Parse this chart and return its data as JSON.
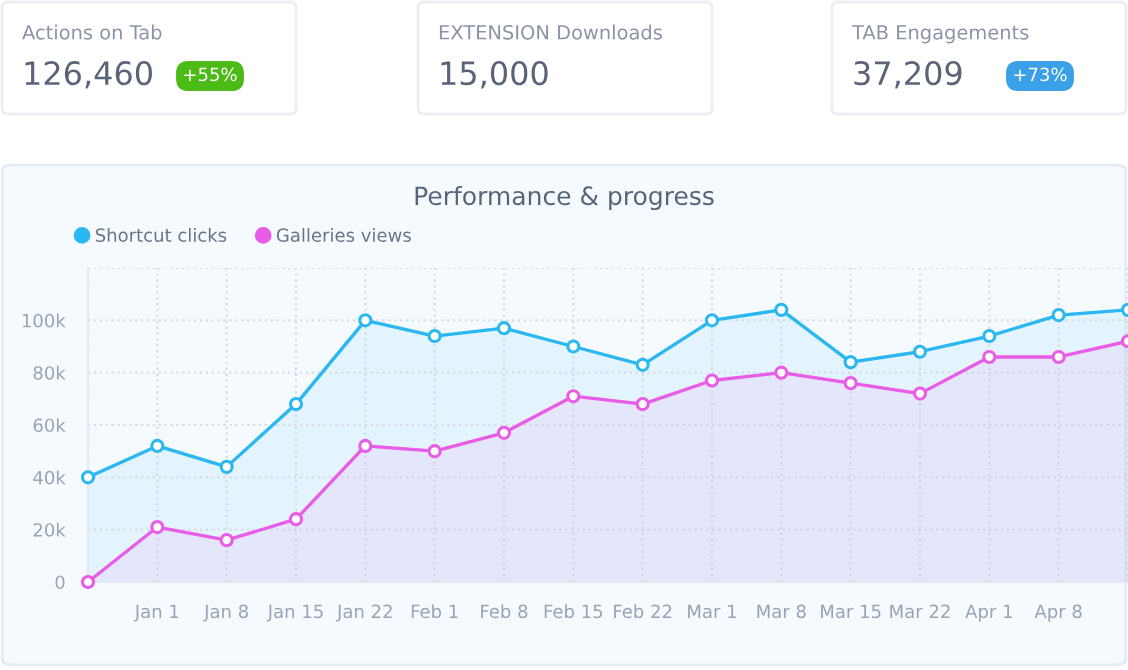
{
  "chart_data": [
    {
      "type": "other",
      "title": "Actions on Tab",
      "annotations": [
        "126,460",
        "+55%"
      ]
    },
    {
      "type": "other",
      "title": "EXTENSION Downloads",
      "annotations": [
        "15,000"
      ]
    },
    {
      "type": "other",
      "title": "TAB Engagements",
      "annotations": [
        "37,209",
        "+73%"
      ]
    },
    {
      "type": "area",
      "title": "Performance & progress",
      "categories": [
        null,
        "Jan 1",
        "Jan 8",
        "Jan 15",
        "Jan 22",
        "Feb 1",
        "Feb 8",
        "Feb 15",
        "Feb 22",
        "Mar 1",
        "Mar 8",
        "Mar 15",
        "Mar 22",
        "Apr 1",
        "Apr 8",
        null
      ],
      "series": [
        {
          "name": "Shortcut clicks",
          "color": "#2bb8f0",
          "values": [
            40,
            52,
            44,
            68,
            100,
            94,
            97,
            90,
            83,
            100,
            104,
            84,
            88,
            94,
            102,
            104
          ]
        },
        {
          "name": "Galleries views",
          "color": "#e85ce6",
          "values": [
            0,
            21,
            16,
            24,
            52,
            50,
            57,
            71,
            68,
            77,
            80,
            76,
            72,
            86,
            86,
            92
          ]
        }
      ],
      "ylim": [
        0,
        120
      ],
      "yticks": [
        0,
        {
          "value": 20,
          "label": "20k"
        },
        {
          "value": 40,
          "label": "40k"
        },
        {
          "value": 60,
          "label": "60k"
        },
        {
          "value": 80,
          "label": "80k"
        },
        {
          "value": 100,
          "label": "100k"
        },
        {
          "value": 120,
          "label": null
        }
      ],
      "grid": true,
      "legend": "top left",
      "marker": "circle",
      "line_style": "solid"
    }
  ]
}
